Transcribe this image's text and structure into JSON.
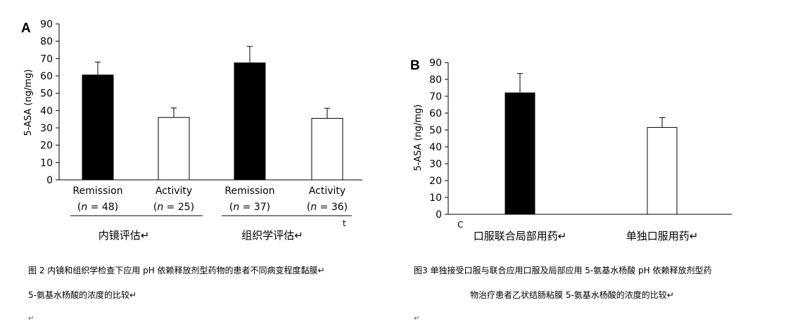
{
  "chart_data": [
    {
      "type": "bar",
      "panel_label": "A",
      "ylabel": "5-ASA (ng/mg)",
      "ylim": [
        0,
        90
      ],
      "yticks": [
        0,
        10,
        20,
        30,
        40,
        50,
        60,
        70,
        80,
        90
      ],
      "bars": [
        {
          "label": "Remission",
          "n_label": "(n = 48)",
          "value": 60.5,
          "error": 7.5,
          "fill": "#000000"
        },
        {
          "label": "Activity",
          "n_label": "(n = 25)",
          "value": 36,
          "error": 5.5,
          "fill": "#ffffff"
        },
        {
          "label": "Remission",
          "n_label": "(n = 37)",
          "value": 67.5,
          "error": 9.5,
          "fill": "#000000"
        },
        {
          "label": "Activity",
          "n_label": "(n = 36)",
          "value": 35.5,
          "error": 5.8,
          "fill": "#ffffff"
        }
      ],
      "groups": [
        "内镜评估↵",
        "组织学评估↵"
      ],
      "stray_mark": "t"
    },
    {
      "type": "bar",
      "panel_label": "B",
      "ylabel": "5-ASA (ng/mg)",
      "ylim": [
        0,
        90
      ],
      "yticks": [
        0,
        10,
        20,
        30,
        40,
        50,
        60,
        70,
        80,
        90
      ],
      "bars": [
        {
          "label": "口服联合局部用药↵",
          "value": 72,
          "error": 11.5,
          "fill": "#000000"
        },
        {
          "label": "单独口服用药↵",
          "value": 51.5,
          "error": 5.8,
          "fill": "#ffffff"
        }
      ],
      "stray_mark": "C"
    }
  ],
  "captions": {
    "left_line1": "图 2 内镜和组织学检查下应用 pH 依赖释放剂型药物的患者不同病变程度黏膜↵",
    "left_line2": "5-氨基水杨酸的浓度的比较↵",
    "left_return": "↵",
    "right_line1": "图3 单独接受口服与联合应用口服及局部应用 5-氨基水杨酸 pH 依赖释放剂型药",
    "right_line2": "物治疗患者乙状结肠粘膜 5-氨基水杨酸的浓度的比较↵",
    "right_return": "↵"
  }
}
